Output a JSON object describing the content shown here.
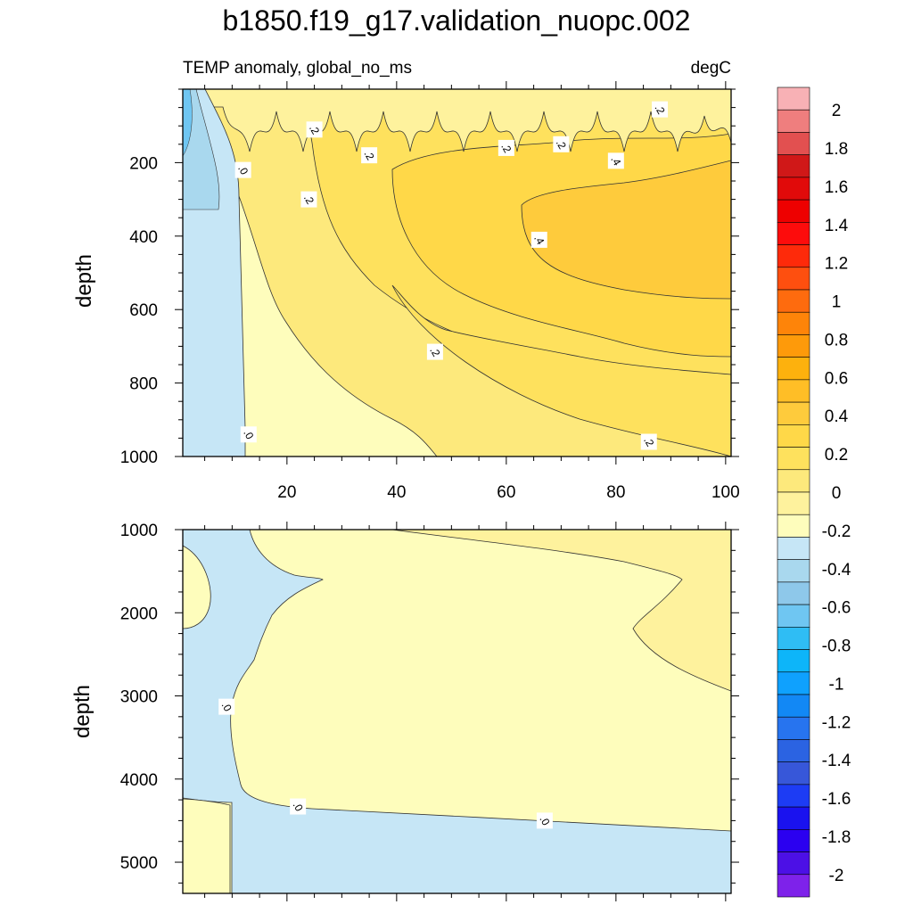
{
  "chart_data": [
    {
      "type": "heatmap",
      "title": "b1850.f19_g17.validation_nuopc.002",
      "subtitle_left": "TEMP anomaly, global_no_ms",
      "subtitle_right": "degC",
      "xlabel": "",
      "ylabel": "depth",
      "xlim": [
        1,
        101
      ],
      "ylim": [
        1000,
        0
      ],
      "x_ticks": [
        20,
        40,
        60,
        80,
        100
      ],
      "x_tick_labels": [
        "20",
        "40",
        "60",
        "80",
        "100"
      ],
      "y_ticks": [
        200,
        400,
        600,
        800,
        1000
      ],
      "y_tick_labels": [
        "200",
        "400",
        "600",
        "800",
        "1000"
      ],
      "grid": false,
      "contour_labels": [
        {
          "text": ".0",
          "x": 12,
          "y": 220
        },
        {
          "text": ".2",
          "x": 25,
          "y": 110
        },
        {
          "text": ".2",
          "x": 35,
          "y": 180
        },
        {
          "text": ".2",
          "x": 60,
          "y": 160
        },
        {
          "text": ".2",
          "x": 70,
          "y": 150
        },
        {
          "text": ".2",
          "x": 88,
          "y": 55
        },
        {
          "text": ".4",
          "x": 80,
          "y": 195
        },
        {
          "text": ".4",
          "x": 66,
          "y": 410
        },
        {
          "text": ".2",
          "x": 47,
          "y": 715
        },
        {
          "text": ".0",
          "x": 13,
          "y": 940
        },
        {
          "text": ".2",
          "x": 86,
          "y": 960
        },
        {
          "text": ".2",
          "x": 24,
          "y": 300
        }
      ]
    },
    {
      "type": "heatmap",
      "xlabel": "",
      "ylabel": "depth",
      "xlim": [
        1,
        101
      ],
      "ylim": [
        5375,
        1000
      ],
      "y_ticks": [
        1000,
        2000,
        3000,
        4000,
        5000
      ],
      "y_tick_labels": [
        "1000",
        "2000",
        "3000",
        "4000",
        "5000"
      ],
      "grid": false,
      "contour_labels": [
        {
          "text": ".0",
          "x": 9,
          "y": 3130
        },
        {
          "text": ".0",
          "x": 22,
          "y": 4330
        },
        {
          "text": ".0",
          "x": 67,
          "y": 4500
        }
      ]
    }
  ],
  "colorbar": {
    "labels": [
      "2",
      "1.8",
      "1.6",
      "1.4",
      "1.2",
      "1",
      "0.8",
      "0.6",
      "0.4",
      "0.2",
      "0",
      "-0.2",
      "-0.4",
      "-0.6",
      "-0.8",
      "-1",
      "-1.2",
      "-1.4",
      "-1.6",
      "-1.8",
      "-2"
    ],
    "colors": [
      "#f8b1b5",
      "#ef7e7e",
      "#e25050",
      "#d01818",
      "#e10a0a",
      "#ee0000",
      "#fd0c0c",
      "#fe2a0a",
      "#fe4f0f",
      "#fe6b0e",
      "#fe8409",
      "#fe9a0a",
      "#fdb10d",
      "#ffbe26",
      "#fecb3c",
      "#ffd848",
      "#fee15d",
      "#fde97c",
      "#fef29d",
      "#fefdbc",
      "#c6e6f6",
      "#a9d8ee",
      "#8ec8ea",
      "#6fc6f2",
      "#2fbdf4",
      "#0db5f9",
      "#0fa1fe",
      "#1288f5",
      "#2774ef",
      "#2b63e2",
      "#3757d9",
      "#1d3cf4",
      "#1a12ef",
      "#2b00f0",
      "#4c10e6",
      "#7e22ea"
    ]
  }
}
